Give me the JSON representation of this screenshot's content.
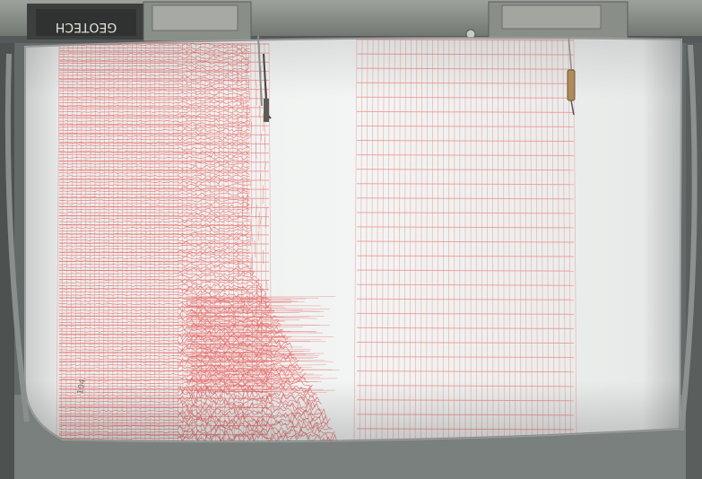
{
  "photo": {
    "subject": "seismograph-drum-recording",
    "label_plate_text": "GEOTECH",
    "label_plate_text_mirrored": true,
    "drum_note_text": "104",
    "colors": {
      "background": "#6f7574",
      "housing": "#5f6564",
      "frame_top": "#8a8e89",
      "paper": "#eef0ef",
      "trace": "#e3605e",
      "grid": "#e98482",
      "plate": "#3a3d3c",
      "plate_text": "#e6e3da",
      "brass": "#b08b5a"
    }
  }
}
